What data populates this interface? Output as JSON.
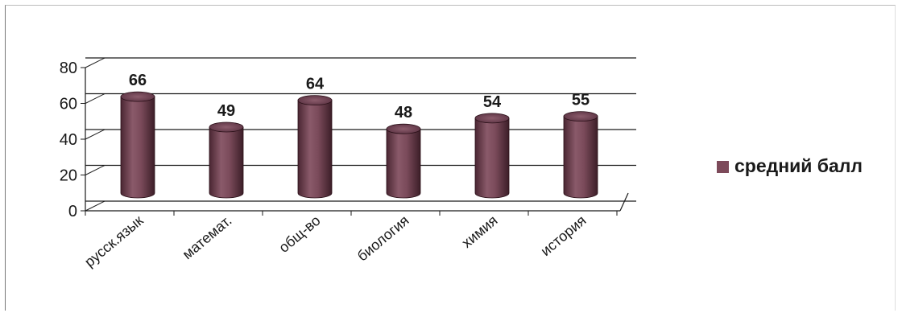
{
  "chart_data": {
    "type": "bar",
    "categories": [
      "русск.язык",
      "математ.",
      "общ-во",
      "биология",
      "химия",
      "история"
    ],
    "series": [
      {
        "name": "средний балл",
        "values": [
          66,
          49,
          64,
          48,
          54,
          55
        ]
      }
    ],
    "ylim": [
      0,
      80
    ],
    "yticks": [
      0,
      20,
      40,
      60,
      80
    ],
    "grid": true,
    "legend_position": "right",
    "bar_color": "#7d4a5a",
    "bar_shape": "cylinder"
  }
}
